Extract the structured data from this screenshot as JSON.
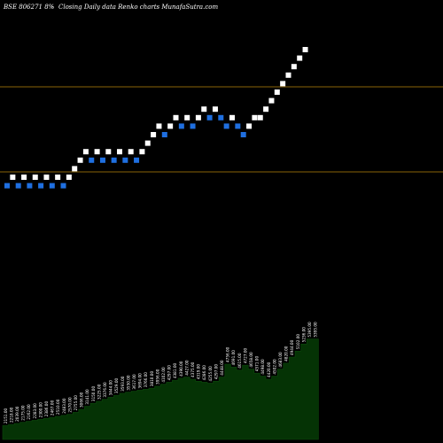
{
  "header": {
    "symbol": "BSE 806271 8%",
    "suffix": "-",
    "subtitle": "Closing Daily data  Renko  charts MunafaSutra.com"
  },
  "colors": {
    "background": "#000000",
    "up_brick": "#ffffff",
    "down_brick": "#1f6fe0",
    "level_line": "#b8860b",
    "volume_fill": "#053305",
    "volume_edge": "#0c4a0c"
  },
  "chart_data": {
    "type": "renko",
    "y_range": [
      0,
      20
    ],
    "level_lines": [
      5.5,
      13.5
    ],
    "bricks": [
      {
        "level": 4.2,
        "dir": "down"
      },
      {
        "level": 5.0,
        "dir": "up"
      },
      {
        "level": 4.2,
        "dir": "down"
      },
      {
        "level": 5.0,
        "dir": "up"
      },
      {
        "level": 4.2,
        "dir": "down"
      },
      {
        "level": 5.0,
        "dir": "up"
      },
      {
        "level": 4.2,
        "dir": "down"
      },
      {
        "level": 5.0,
        "dir": "up"
      },
      {
        "level": 4.2,
        "dir": "down"
      },
      {
        "level": 5.0,
        "dir": "up"
      },
      {
        "level": 4.2,
        "dir": "down"
      },
      {
        "level": 5.0,
        "dir": "up"
      },
      {
        "level": 5.8,
        "dir": "up"
      },
      {
        "level": 6.6,
        "dir": "up"
      },
      {
        "level": 7.4,
        "dir": "up"
      },
      {
        "level": 6.6,
        "dir": "down"
      },
      {
        "level": 7.4,
        "dir": "up"
      },
      {
        "level": 6.6,
        "dir": "down"
      },
      {
        "level": 7.4,
        "dir": "up"
      },
      {
        "level": 6.6,
        "dir": "down"
      },
      {
        "level": 7.4,
        "dir": "up"
      },
      {
        "level": 6.6,
        "dir": "down"
      },
      {
        "level": 7.4,
        "dir": "up"
      },
      {
        "level": 6.6,
        "dir": "down"
      },
      {
        "level": 7.4,
        "dir": "up"
      },
      {
        "level": 8.2,
        "dir": "up"
      },
      {
        "level": 9.0,
        "dir": "up"
      },
      {
        "level": 9.8,
        "dir": "up"
      },
      {
        "level": 9.0,
        "dir": "down"
      },
      {
        "level": 9.8,
        "dir": "up"
      },
      {
        "level": 10.6,
        "dir": "up"
      },
      {
        "level": 9.8,
        "dir": "down"
      },
      {
        "level": 10.6,
        "dir": "up"
      },
      {
        "level": 9.8,
        "dir": "down"
      },
      {
        "level": 10.6,
        "dir": "up"
      },
      {
        "level": 11.4,
        "dir": "up"
      },
      {
        "level": 10.6,
        "dir": "down"
      },
      {
        "level": 11.4,
        "dir": "up"
      },
      {
        "level": 10.6,
        "dir": "down"
      },
      {
        "level": 9.8,
        "dir": "down"
      },
      {
        "level": 10.6,
        "dir": "up"
      },
      {
        "level": 9.8,
        "dir": "down"
      },
      {
        "level": 9.0,
        "dir": "down"
      },
      {
        "level": 9.8,
        "dir": "up"
      },
      {
        "level": 10.6,
        "dir": "up"
      },
      {
        "level": 10.6,
        "dir": "up"
      },
      {
        "level": 11.4,
        "dir": "up"
      },
      {
        "level": 12.2,
        "dir": "up"
      },
      {
        "level": 13.0,
        "dir": "up"
      },
      {
        "level": 13.8,
        "dir": "up"
      },
      {
        "level": 14.6,
        "dir": "up"
      },
      {
        "level": 15.4,
        "dir": "up"
      },
      {
        "level": 16.2,
        "dir": "up"
      },
      {
        "level": 17.0,
        "dir": "up"
      }
    ],
    "volume_max": 120,
    "volume": [
      {
        "value": 14,
        "label": "2151.00"
      },
      {
        "value": 15,
        "label": "2218.00"
      },
      {
        "value": 16,
        "label": "2039.00"
      },
      {
        "value": 17,
        "label": "2175.00"
      },
      {
        "value": 18,
        "label": "2162.00"
      },
      {
        "value": 19,
        "label": "2283.00"
      },
      {
        "value": 20,
        "label": "2300.00"
      },
      {
        "value": 21,
        "label": "2386.00"
      },
      {
        "value": 22,
        "label": "2467.00"
      },
      {
        "value": 23,
        "label": "2510.00"
      },
      {
        "value": 24,
        "label": "2483.00"
      },
      {
        "value": 25,
        "label": "2570.00"
      },
      {
        "value": 27,
        "label": "2755.00"
      },
      {
        "value": 30,
        "label": "3066.00"
      },
      {
        "value": 33,
        "label": "3141.00"
      },
      {
        "value": 36,
        "label": "3150.00"
      },
      {
        "value": 38,
        "label": "3225.00"
      },
      {
        "value": 40,
        "label": "3376.00"
      },
      {
        "value": 42,
        "label": "3444.00"
      },
      {
        "value": 44,
        "label": "3529.00"
      },
      {
        "value": 46,
        "label": "3593.00"
      },
      {
        "value": 47,
        "label": "3550.00"
      },
      {
        "value": 48,
        "label": "3617.00"
      },
      {
        "value": 49,
        "label": "3694.00"
      },
      {
        "value": 50,
        "label": "3766.00"
      },
      {
        "value": 51,
        "label": "3810.00"
      },
      {
        "value": 53,
        "label": "3956.00"
      },
      {
        "value": 55,
        "label": "4102.00"
      },
      {
        "value": 57,
        "label": "4297.00"
      },
      {
        "value": 59,
        "label": "4381.00"
      },
      {
        "value": 61,
        "label": "4390.00"
      },
      {
        "value": 62,
        "label": "4427.00"
      },
      {
        "value": 60,
        "label": "4375.00"
      },
      {
        "value": 58,
        "label": "4319.00"
      },
      {
        "value": 57,
        "label": "4286.00"
      },
      {
        "value": 56,
        "label": "4255.00"
      },
      {
        "value": 58,
        "label": "4297.00"
      },
      {
        "value": 62,
        "label": "4448.00"
      },
      {
        "value": 75,
        "label": "4756.00"
      },
      {
        "value": 72,
        "label": "4691.00"
      },
      {
        "value": 69,
        "label": "4615.00"
      },
      {
        "value": 74,
        "label": "4727.00"
      },
      {
        "value": 70,
        "label": "4658.00"
      },
      {
        "value": 66,
        "label": "4571.00"
      },
      {
        "value": 63,
        "label": "4498.00"
      },
      {
        "value": 60,
        "label": "4420.00"
      },
      {
        "value": 63,
        "label": "4502.00"
      },
      {
        "value": 70,
        "label": "4683.00"
      },
      {
        "value": 76,
        "label": "4820.00"
      },
      {
        "value": 82,
        "label": "4944.00"
      },
      {
        "value": 88,
        "label": "5102.00"
      },
      {
        "value": 95,
        "label": "5236.00"
      },
      {
        "value": 100,
        "label": "5395.00"
      },
      {
        "value": 100,
        "label": "5395.00"
      }
    ]
  }
}
